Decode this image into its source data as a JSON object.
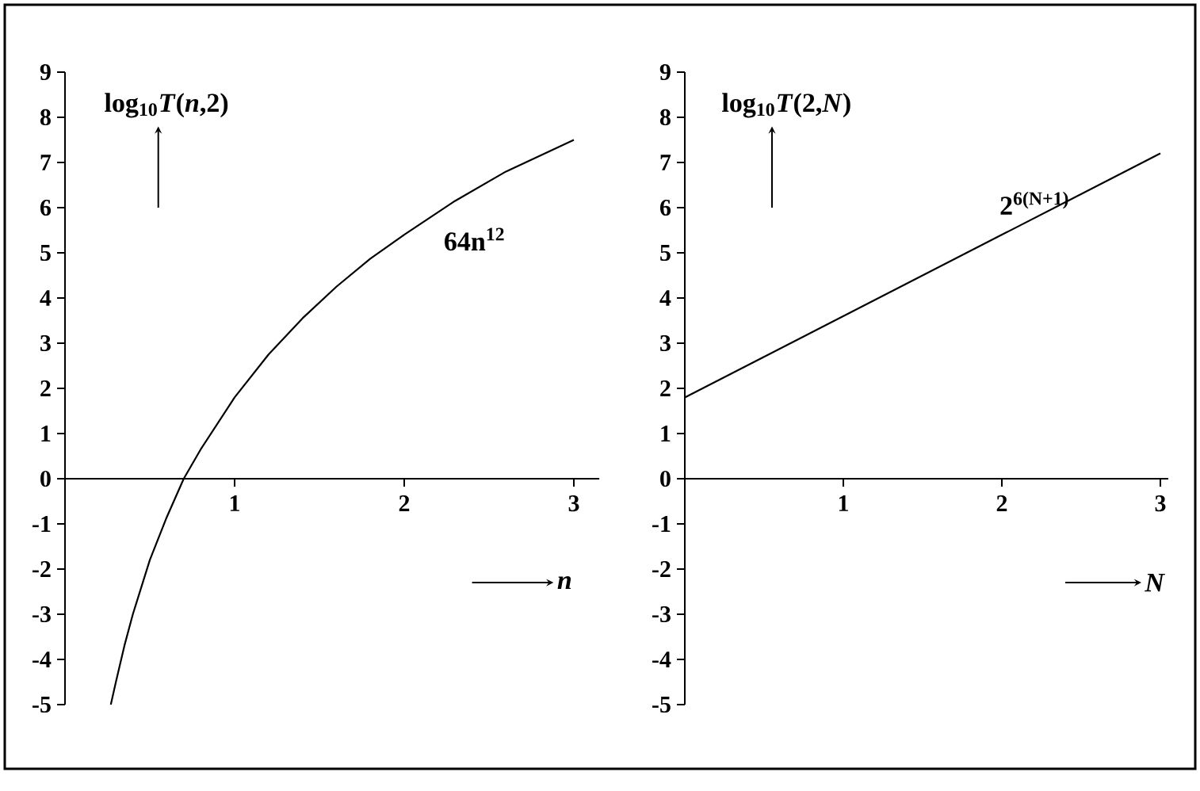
{
  "chart_data": [
    {
      "type": "line",
      "ylabel": "log$_{10}$*T*(*n*,2)",
      "xlabel": "*n*",
      "color": "#000000",
      "x": [
        0.27,
        0.3,
        0.35,
        0.4,
        0.5,
        0.6,
        0.7,
        0.8,
        1.0,
        1.2,
        1.4,
        1.6,
        1.8,
        2.0,
        2.3,
        2.6,
        3.0
      ],
      "values": [
        -5.0,
        -4.5,
        -3.7,
        -3.0,
        -1.8,
        -0.85,
        0.0,
        0.65,
        1.8,
        2.75,
        3.55,
        4.25,
        4.87,
        5.4,
        6.15,
        6.8,
        7.5
      ],
      "xlim": [
        0,
        3.15
      ],
      "ylim": [
        -5,
        9
      ],
      "xticks": [
        1,
        2,
        3
      ],
      "yticks": [
        -5,
        -4,
        -3,
        -2,
        -1,
        0,
        1,
        2,
        3,
        4,
        5,
        6,
        7,
        8,
        9
      ],
      "annotations": [
        "64n$^{12}$"
      ]
    },
    {
      "type": "line",
      "ylabel": "log$_{10}$*T*(2,*N*)",
      "xlabel": "*N*",
      "color": "#000000",
      "x": [
        0,
        3.0
      ],
      "values": [
        1.8,
        7.2
      ],
      "xlim": [
        0,
        3.05
      ],
      "ylim": [
        -5,
        9
      ],
      "xticks": [
        1,
        2,
        3
      ],
      "yticks": [
        -5,
        -4,
        -3,
        -2,
        -1,
        0,
        1,
        2,
        3,
        4,
        5,
        6,
        7,
        8,
        9
      ],
      "annotations": [
        "2$^{6(N+1)}$"
      ]
    }
  ]
}
